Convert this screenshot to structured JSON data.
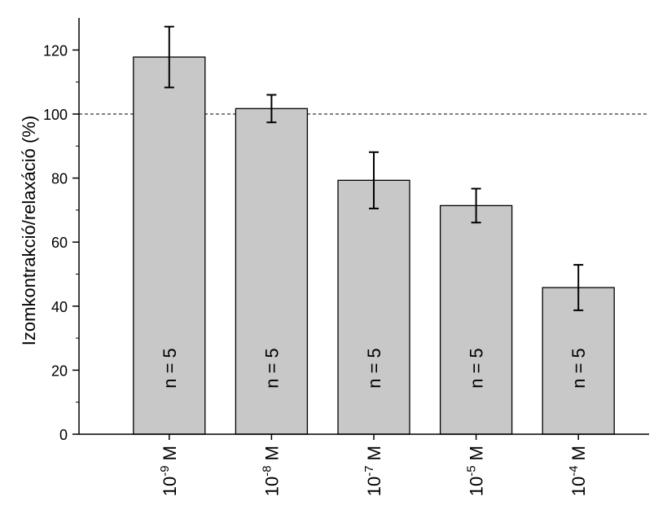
{
  "chart_data": {
    "type": "bar",
    "title": "",
    "xlabel": "",
    "ylabel": "Izomkontrakció/relaxáció (%)",
    "ylim": [
      0,
      130
    ],
    "yticks": [
      0,
      20,
      40,
      60,
      80,
      100,
      120
    ],
    "reference_line": 100,
    "categories": [
      {
        "base": "10",
        "exp": "-9",
        "unit": "M"
      },
      {
        "base": "10",
        "exp": "-8",
        "unit": "M"
      },
      {
        "base": "10",
        "exp": "-7",
        "unit": "M"
      },
      {
        "base": "10",
        "exp": "-5",
        "unit": "M"
      },
      {
        "base": "10",
        "exp": "-4",
        "unit": "M"
      }
    ],
    "values": [
      117.8,
      101.7,
      79.3,
      71.4,
      45.8
    ],
    "errors": [
      9.5,
      4.3,
      8.8,
      5.3,
      7.1
    ],
    "bar_labels": [
      "n = 5",
      "n = 5",
      "n = 5",
      "n = 5",
      "n = 5"
    ],
    "colors": {
      "bar_fill": "#c8c8c8",
      "bar_stroke": "#000000"
    }
  }
}
